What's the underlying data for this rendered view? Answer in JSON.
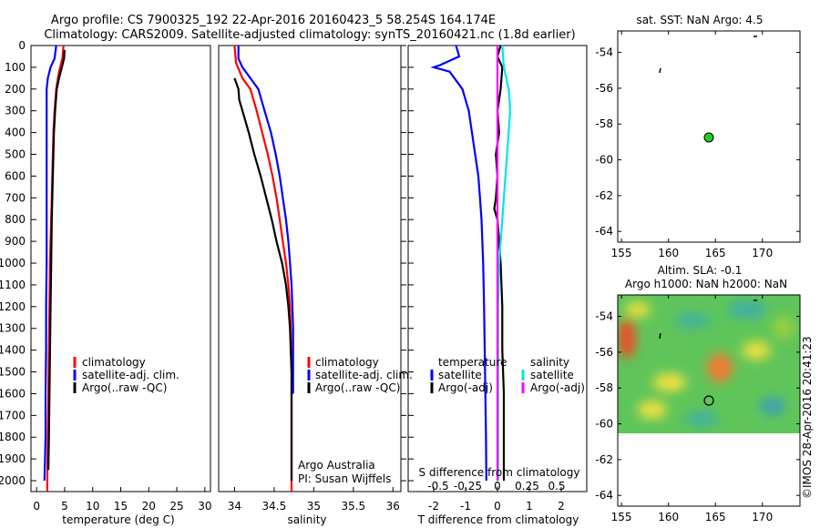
{
  "title": {
    "line1": "Argo profile: CS 7900325_192 22-Apr-2016 20160423_5 58.254S 164.174E",
    "line2": "Climatology: CARS2009. Satellite-adjusted climatology: synTS_20160421.nc (1.8d earlier)"
  },
  "colors": {
    "climatology": "#ff0000",
    "satellite": "#0000ff",
    "argo": "#000000",
    "sat_salinity": "#00e5e5",
    "argo_adj_salinity": "#ff00ff",
    "float_marker": "#22cc22"
  },
  "depth_ticks": [
    0,
    100,
    200,
    300,
    400,
    500,
    600,
    700,
    800,
    900,
    1000,
    1100,
    1200,
    1300,
    1400,
    1500,
    1600,
    1700,
    1800,
    1900,
    2000
  ],
  "panels": {
    "temperature": {
      "xlabel": "temperature (deg C)",
      "xticks": [
        "0",
        "5",
        "10",
        "15",
        "20",
        "25",
        "30"
      ],
      "legend": [
        "climatology",
        "satellite-adj. clim.",
        "Argo(..raw -QC)"
      ]
    },
    "salinity": {
      "xlabel": "salinity",
      "xticks": [
        "34",
        "34.5",
        "35",
        "35.5",
        "36"
      ],
      "legend": [
        "climatology",
        "satellite-adj. clim.",
        "Argo(..raw -QC)"
      ],
      "note1": "Argo Australia",
      "note2": "PI: Susan Wijffels"
    },
    "difference": {
      "xlabel": "T difference from climatology",
      "xticks_T": [
        "-2",
        "-1",
        "0",
        "1",
        "2"
      ],
      "top_label": "S difference from climatology",
      "xticks_S": [
        "-0.5",
        "-0.25",
        "0",
        "0.25",
        "0.5"
      ],
      "legend_left_title": "temperature",
      "legend_left": [
        "satellite",
        "Argo(-adj)"
      ],
      "legend_right_title": "salinity",
      "legend_right": [
        "satellite",
        "Argo(-adj)"
      ]
    }
  },
  "maps": {
    "sst": {
      "title": "sat. SST: NaN Argo: 4.5",
      "yticks": [
        "-54",
        "-56",
        "-58",
        "-60",
        "-62",
        "-64"
      ],
      "xticks": [
        "155",
        "160",
        "165",
        "170"
      ]
    },
    "sla": {
      "title1": "Altim. SLA: -0.1",
      "title2": "Argo h1000: NaN h2000: NaN",
      "yticks": [
        "-54",
        "-56",
        "-58",
        "-60",
        "-62",
        "-64"
      ],
      "xticks": [
        "155",
        "160",
        "165",
        "170"
      ]
    }
  },
  "watermark": "©IMOS 28-Apr-2016 20:41:23",
  "chart_data": [
    {
      "type": "line",
      "title": "",
      "xlabel": "temperature (deg C)",
      "ylabel": "",
      "xlim": [
        -1,
        31
      ],
      "ylim": [
        2050,
        0
      ],
      "series": [
        {
          "name": "climatology",
          "points": [
            [
              4.8,
              0
            ],
            [
              4.6,
              60
            ],
            [
              4.0,
              120
            ],
            [
              3.5,
              200
            ],
            [
              3.2,
              300
            ],
            [
              3.0,
              400
            ],
            [
              2.9,
              500
            ],
            [
              2.8,
              600
            ],
            [
              2.7,
              700
            ],
            [
              2.6,
              800
            ],
            [
              2.5,
              900
            ],
            [
              2.4,
              1000
            ],
            [
              2.3,
              1200
            ],
            [
              2.2,
              1400
            ],
            [
              2.1,
              1600
            ],
            [
              2.0,
              1800
            ],
            [
              1.9,
              2000
            ],
            [
              1.9,
              2050
            ]
          ]
        },
        {
          "name": "satellite-adj. clim.",
          "points": [
            [
              3.5,
              0
            ],
            [
              3.2,
              60
            ],
            [
              2.5,
              100
            ],
            [
              2.0,
              150
            ],
            [
              1.8,
              200
            ],
            [
              1.8,
              300
            ],
            [
              1.8,
              400
            ],
            [
              1.8,
              600
            ],
            [
              1.8,
              800
            ],
            [
              1.8,
              1000
            ],
            [
              1.7,
              1200
            ],
            [
              1.7,
              1400
            ],
            [
              1.6,
              1600
            ],
            [
              1.6,
              1800
            ],
            [
              1.5,
              1900
            ],
            [
              1.4,
              2000
            ]
          ]
        },
        {
          "name": "Argo(..raw -QC)",
          "points": [
            [
              5.0,
              20
            ],
            [
              4.9,
              60
            ],
            [
              4.5,
              100
            ],
            [
              4.0,
              150
            ],
            [
              3.6,
              200
            ],
            [
              3.3,
              300
            ],
            [
              3.1,
              400
            ],
            [
              3.0,
              500
            ],
            [
              2.9,
              600
            ],
            [
              2.8,
              700
            ],
            [
              2.7,
              800
            ],
            [
              2.6,
              1000
            ],
            [
              2.5,
              1200
            ],
            [
              2.4,
              1400
            ],
            [
              2.3,
              1600
            ],
            [
              2.2,
              1800
            ],
            [
              2.1,
              1950
            ]
          ]
        }
      ]
    },
    {
      "type": "line",
      "title": "",
      "xlabel": "salinity",
      "ylabel": "",
      "xlim": [
        33.8,
        36.1
      ],
      "ylim": [
        2050,
        0
      ],
      "series": [
        {
          "name": "climatology",
          "points": [
            [
              34.0,
              0
            ],
            [
              34.02,
              80
            ],
            [
              34.1,
              150
            ],
            [
              34.2,
              200
            ],
            [
              34.28,
              300
            ],
            [
              34.35,
              400
            ],
            [
              34.42,
              500
            ],
            [
              34.48,
              600
            ],
            [
              34.53,
              700
            ],
            [
              34.57,
              800
            ],
            [
              34.61,
              900
            ],
            [
              34.65,
              1000
            ],
            [
              34.68,
              1100
            ],
            [
              34.7,
              1200
            ],
            [
              34.71,
              1300
            ],
            [
              34.72,
              1500
            ],
            [
              34.72,
              1700
            ],
            [
              34.72,
              1900
            ],
            [
              34.72,
              2050
            ]
          ]
        },
        {
          "name": "satellite-adj. clim.",
          "points": [
            [
              34.05,
              0
            ],
            [
              34.05,
              60
            ],
            [
              34.1,
              100
            ],
            [
              34.2,
              150
            ],
            [
              34.3,
              200
            ],
            [
              34.38,
              300
            ],
            [
              34.46,
              400
            ],
            [
              34.52,
              500
            ],
            [
              34.57,
              600
            ],
            [
              34.61,
              700
            ],
            [
              34.65,
              800
            ],
            [
              34.68,
              900
            ],
            [
              34.7,
              1000
            ],
            [
              34.72,
              1100
            ],
            [
              34.73,
              1200
            ],
            [
              34.74,
              1300
            ],
            [
              34.74,
              1500
            ],
            [
              34.74,
              1600
            ]
          ]
        },
        {
          "name": "Argo(..raw -QC)",
          "points": [
            [
              34.0,
              150
            ],
            [
              34.05,
              200
            ],
            [
              34.06,
              250
            ],
            [
              34.1,
              300
            ],
            [
              34.18,
              400
            ],
            [
              34.25,
              500
            ],
            [
              34.33,
              600
            ],
            [
              34.4,
              700
            ],
            [
              34.47,
              800
            ],
            [
              34.53,
              900
            ],
            [
              34.6,
              1000
            ],
            [
              34.65,
              1100
            ],
            [
              34.68,
              1200
            ],
            [
              34.7,
              1300
            ],
            [
              34.71,
              1400
            ],
            [
              34.72,
              1500
            ],
            [
              34.72,
              1700
            ],
            [
              34.72,
              1900
            ],
            [
              34.72,
              2000
            ]
          ]
        }
      ]
    },
    {
      "type": "line",
      "title": "",
      "xlabel": "T difference from climatology",
      "ylabel": "",
      "xlim": [
        -2.8,
        2.8
      ],
      "ylim": [
        2050,
        0
      ],
      "series": [
        {
          "name": "temperature satellite",
          "points": [
            [
              -1.3,
              0
            ],
            [
              -1.2,
              50
            ],
            [
              -1.8,
              90
            ],
            [
              -2.0,
              100
            ],
            [
              -1.5,
              120
            ],
            [
              -1.1,
              200
            ],
            [
              -0.9,
              300
            ],
            [
              -0.8,
              400
            ],
            [
              -0.7,
              500
            ],
            [
              -0.6,
              600
            ],
            [
              -0.55,
              700
            ],
            [
              -0.5,
              800
            ],
            [
              -0.45,
              1000
            ],
            [
              -0.42,
              1200
            ],
            [
              -0.4,
              1400
            ],
            [
              -0.38,
              1600
            ],
            [
              -0.36,
              1800
            ],
            [
              -0.35,
              2000
            ]
          ]
        },
        {
          "name": "temperature Argo(-adj)",
          "points": [
            [
              0.1,
              0
            ],
            [
              0.0,
              50
            ],
            [
              0.15,
              100
            ],
            [
              0.1,
              200
            ],
            [
              0.0,
              300
            ],
            [
              0.05,
              400
            ],
            [
              -0.05,
              500
            ],
            [
              0.0,
              600
            ],
            [
              -0.05,
              700
            ],
            [
              -0.1,
              750
            ],
            [
              0.0,
              800
            ],
            [
              0.05,
              900
            ],
            [
              0.1,
              1000
            ],
            [
              0.15,
              1200
            ],
            [
              0.15,
              1400
            ],
            [
              0.2,
              1600
            ],
            [
              0.2,
              1800
            ],
            [
              0.2,
              2000
            ]
          ]
        },
        {
          "name": "salinity satellite",
          "points": [
            [
              0.15,
              0
            ],
            [
              0.2,
              100
            ],
            [
              0.35,
              200
            ],
            [
              0.4,
              300
            ],
            [
              0.35,
              400
            ],
            [
              0.3,
              500
            ],
            [
              0.25,
              600
            ],
            [
              0.2,
              700
            ],
            [
              0.15,
              800
            ],
            [
              0.1,
              900
            ],
            [
              0.05,
              1000
            ],
            [
              0.02,
              1200
            ],
            [
              0.02,
              1500
            ],
            [
              0.02,
              1800
            ],
            [
              0.02,
              2000
            ]
          ]
        },
        {
          "name": "salinity Argo(-adj)",
          "points": [
            [
              0.0,
              0
            ],
            [
              0.0,
              2000
            ]
          ]
        }
      ]
    }
  ]
}
